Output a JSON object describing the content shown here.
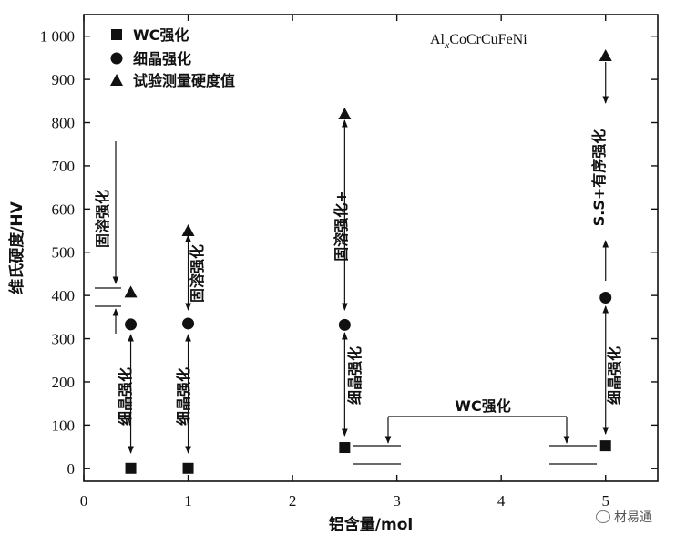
{
  "chart_data": {
    "type": "scatter",
    "title": "",
    "xlabel": "铝含量/mol",
    "ylabel": "维氏硬度/HV",
    "xlim": [
      0,
      5.5
    ],
    "ylim": [
      -30,
      1050
    ],
    "x_ticks": [
      0,
      1,
      2,
      3,
      4,
      5
    ],
    "y_ticks": [
      0,
      100,
      200,
      300,
      400,
      500,
      600,
      700,
      800,
      900,
      1000
    ],
    "y_tick_labels": [
      "0",
      "100",
      "200",
      "300",
      "400",
      "500",
      "600",
      "700",
      "800",
      "900",
      "1 000"
    ],
    "alloy_label": "AlₓCoCrCuFeNi",
    "legend_position": "top-left",
    "series": [
      {
        "name": "WC强化",
        "marker": "square",
        "x": [
          0.45,
          1.0,
          2.5,
          5.0
        ],
        "y": [
          0,
          0,
          48,
          52
        ]
      },
      {
        "name": "细晶强化",
        "marker": "circle",
        "x": [
          0.45,
          1.0,
          2.5,
          5.0
        ],
        "y": [
          333,
          335,
          332,
          395
        ]
      },
      {
        "name": "试验测量硬度值",
        "marker": "triangle",
        "x": [
          0.45,
          1.0,
          2.5,
          5.0
        ],
        "y": [
          408,
          550,
          820,
          955
        ]
      }
    ],
    "annotations": {
      "solid_solution": "固溶强化",
      "fine_grain": "细晶强化",
      "solid_solution_plus": "固溶强化+",
      "ss_order": "S.S+有序强化",
      "wc": "WC强化"
    }
  },
  "watermark": {
    "text": "材易通",
    "icon": "wechat-icon"
  }
}
